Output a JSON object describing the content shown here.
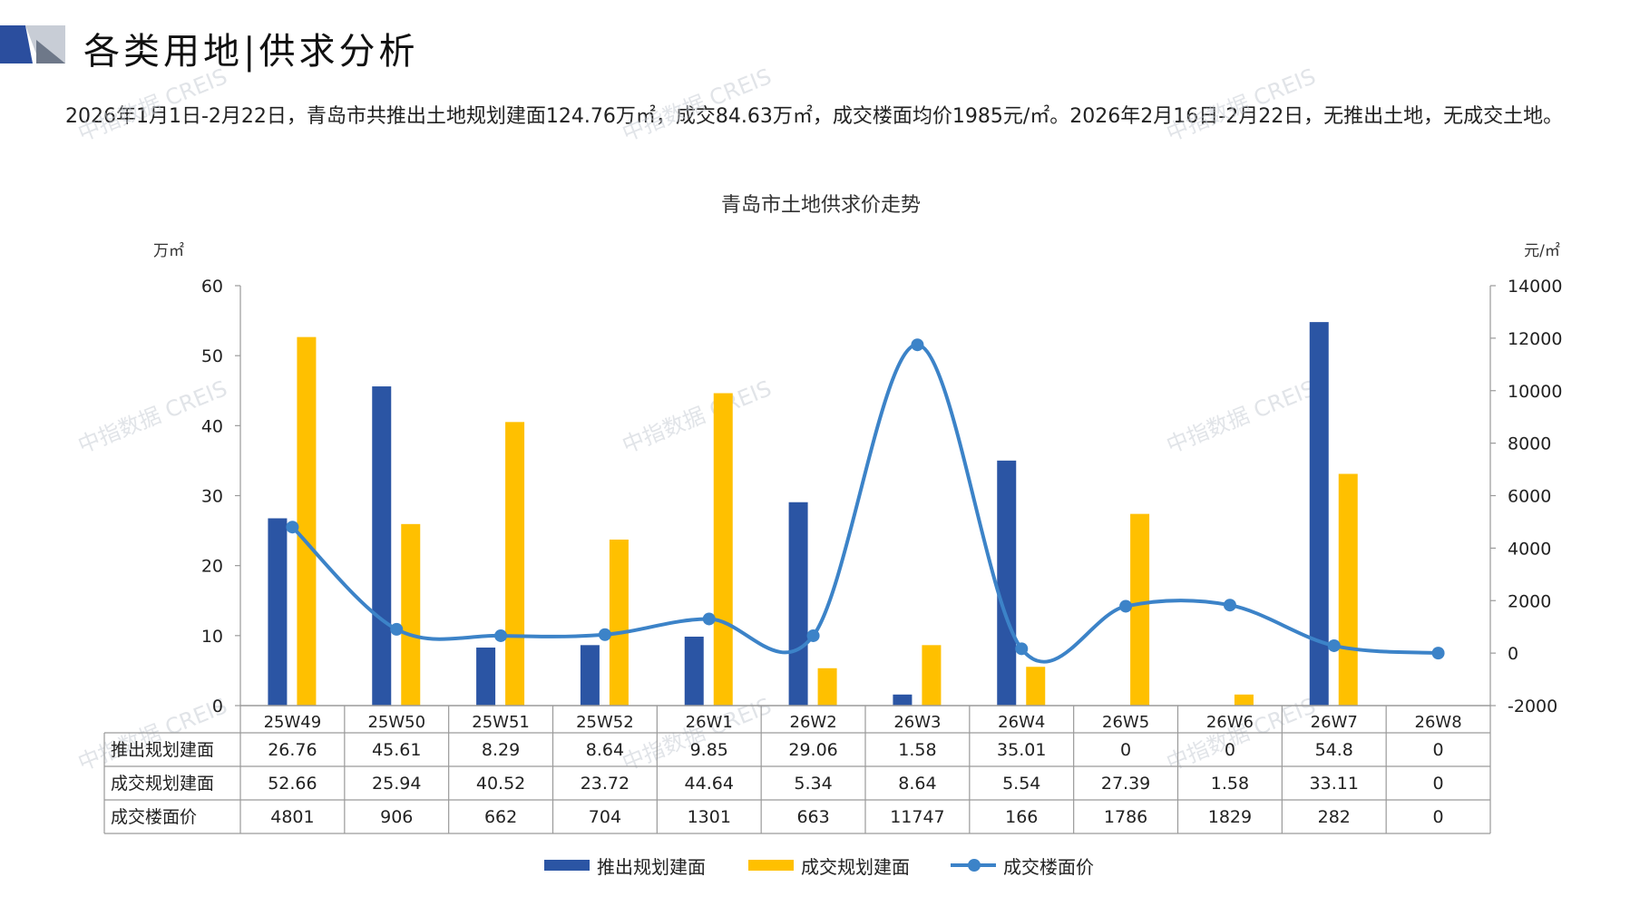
{
  "page": {
    "title": "各类用地|供求分析",
    "summary": "2026年1月1日-2月22日，青岛市共推出土地规划建面124.76万㎡，成交84.63万㎡，成交楼面均价1985元/㎡。2026年2月16日-2月22日，无推出土地，无成交土地。",
    "watermark": "中指数据 CREIS",
    "colors": {
      "supply": "#2B55A4",
      "deal": "#FFC000",
      "price": "#3C83C8",
      "accent_dark": "#2B4E9E",
      "accent_gray": "#9AA3B2"
    }
  },
  "chart_data": {
    "type": "bar",
    "title": "青岛市土地供求价走势",
    "y_left_unit": "万㎡",
    "y_right_unit": "元/㎡",
    "ylim_left": [
      0,
      60
    ],
    "yticks_left": [
      0,
      10,
      20,
      30,
      40,
      50,
      60
    ],
    "ylim_right": [
      -2000,
      14000
    ],
    "yticks_right": [
      -2000,
      0,
      2000,
      4000,
      6000,
      8000,
      10000,
      12000,
      14000
    ],
    "categories": [
      "25W49",
      "25W50",
      "25W51",
      "25W52",
      "26W1",
      "26W2",
      "26W3",
      "26W4",
      "26W5",
      "26W6",
      "26W7",
      "26W8"
    ],
    "series": [
      {
        "name": "推出规划建面",
        "type": "bar",
        "axis": "left",
        "color": "#2B55A4",
        "values": [
          26.76,
          45.61,
          8.29,
          8.64,
          9.85,
          29.06,
          1.58,
          35.01,
          0,
          0,
          54.8,
          0
        ],
        "labels": [
          "26.76",
          "45.61",
          "8.29",
          "8.64",
          "9.85",
          "29.06",
          "1.58",
          "35.01",
          "0",
          "0",
          "54.8",
          "0"
        ]
      },
      {
        "name": "成交规划建面",
        "type": "bar",
        "axis": "left",
        "color": "#FFC000",
        "values": [
          52.66,
          25.94,
          40.52,
          23.72,
          44.64,
          5.34,
          8.64,
          5.54,
          27.39,
          1.58,
          33.11,
          0
        ],
        "labels": [
          "52.66",
          "25.94",
          "40.52",
          "23.72",
          "44.64",
          "5.34",
          "8.64",
          "5.54",
          "27.39",
          "1.58",
          "33.11",
          "0"
        ]
      },
      {
        "name": "成交楼面价",
        "type": "line",
        "axis": "right",
        "color": "#3C83C8",
        "values": [
          4801,
          906,
          662,
          704,
          1301,
          663,
          11747,
          166,
          1786,
          1829,
          282,
          0
        ],
        "labels": [
          "4801",
          "906",
          "662",
          "704",
          "1301",
          "663",
          "11747",
          "166",
          "1786",
          "1829",
          "282",
          "0"
        ]
      }
    ],
    "legend_position": "bottom",
    "data_table": true
  }
}
